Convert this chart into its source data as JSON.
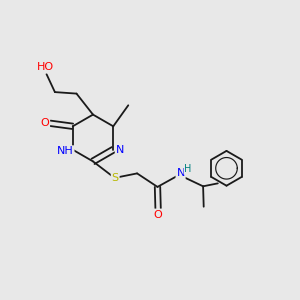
{
  "background_color": "#e8e8e8",
  "bond_color": "#1a1a1a",
  "atom_colors": {
    "N": "#0000ff",
    "O": "#ff0000",
    "S": "#b8b800",
    "H": "#008080",
    "C": "#1a1a1a"
  },
  "font_size": 7.0
}
